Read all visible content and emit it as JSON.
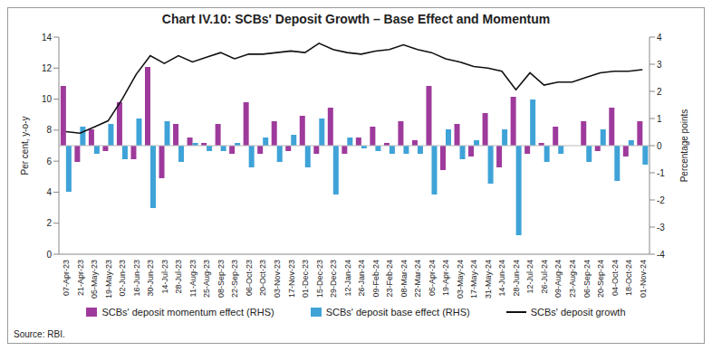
{
  "chart_data": {
    "type": "bar_line",
    "title": "Chart IV.10: SCBs' Deposit Growth – Base Effect and Momentum",
    "y_label": "Per cent, y-o-y",
    "y2_label": "Percentage points",
    "source": "Source: RBI.",
    "categories": [
      "07-Apr-23",
      "21-Apr-23",
      "05-May-23",
      "19-May-23",
      "02-Jun-23",
      "16-Jun-23",
      "30-Jun-23",
      "14-Jul-23",
      "28-Jul-23",
      "11-Aug-23",
      "25-Aug-23",
      "08-Sep-23",
      "22-Sep-23",
      "06-Oct-23",
      "20-Oct-23",
      "03-Nov-23",
      "17-Nov-23",
      "01-Dec-23",
      "15-Dec-23",
      "29-Dec-23",
      "12-Jan-24",
      "26-Jan-24",
      "09-Feb-24",
      "23-Feb-24",
      "08-Mar-24",
      "22-Mar-24",
      "05-Apr-24",
      "19-Apr-24",
      "03-May-24",
      "17-May-24",
      "31-May-24",
      "14-Jun-24",
      "28-Jun-24",
      "12-Jul-24",
      "26-Jul-24",
      "09-Aug-24",
      "23-Aug-24",
      "06-Sep-24",
      "20-Sep-24",
      "04-Oct-24",
      "18-Oct-24",
      "01-Nov-24"
    ],
    "series": [
      {
        "name": "SCBs' deposit momentum effect (RHS)",
        "type": "bar",
        "axis": "y2",
        "color": "#9e3a9c",
        "values": [
          2.2,
          -0.6,
          0.6,
          -0.2,
          1.6,
          -0.5,
          2.9,
          -1.2,
          0.8,
          0.3,
          0.1,
          0.8,
          -0.3,
          1.6,
          -0.3,
          0.9,
          -0.2,
          1.1,
          -0.3,
          1.4,
          -0.3,
          0.3,
          0.7,
          0.1,
          0.9,
          0.2,
          2.2,
          -0.9,
          0.8,
          -0.4,
          1.2,
          -0.8,
          1.8,
          -0.3,
          0.1,
          0.7,
          0.0,
          0.9,
          -0.2,
          1.4,
          -0.4,
          0.9
        ]
      },
      {
        "name": "SCBs' deposit base effect (RHS)",
        "type": "bar",
        "axis": "y2",
        "color": "#3fa3d8",
        "values": [
          -1.7,
          0.7,
          -0.3,
          0.8,
          -0.5,
          1.0,
          -2.3,
          0.9,
          -0.6,
          0.1,
          -0.2,
          -0.2,
          0.1,
          -0.8,
          0.3,
          -0.6,
          0.4,
          -0.8,
          1.0,
          -1.8,
          0.3,
          -0.1,
          -0.2,
          -0.3,
          -0.3,
          -0.3,
          -1.8,
          0.6,
          -0.5,
          0.2,
          -1.4,
          0.6,
          -3.3,
          1.7,
          -0.6,
          -0.3,
          0.0,
          -0.6,
          0.6,
          -1.3,
          0.2,
          -0.7
        ]
      },
      {
        "name": "SCBs' deposit growth",
        "type": "line",
        "color": "#111111",
        "values": [
          7.9,
          7.8,
          8.2,
          8.6,
          10.0,
          11.6,
          12.8,
          12.3,
          12.8,
          12.4,
          12.7,
          13.0,
          12.6,
          12.9,
          12.9,
          13.0,
          13.1,
          13.0,
          13.6,
          13.2,
          13.0,
          12.9,
          13.1,
          13.2,
          13.5,
          13.2,
          13.0,
          12.6,
          12.4,
          12.1,
          12.0,
          11.8,
          10.6,
          11.7,
          10.9,
          11.1,
          11.1,
          11.4,
          11.7,
          11.8,
          11.8,
          11.9
        ]
      }
    ],
    "ylim": [
      0,
      14
    ],
    "yticks": [
      0,
      2,
      4,
      6,
      8,
      10,
      12,
      14
    ],
    "y2lim": [
      -4,
      4
    ],
    "y2ticks": [
      -4,
      -3,
      -2,
      -1,
      0,
      1,
      2,
      3,
      4
    ],
    "grid": false,
    "legend": "bottom"
  }
}
